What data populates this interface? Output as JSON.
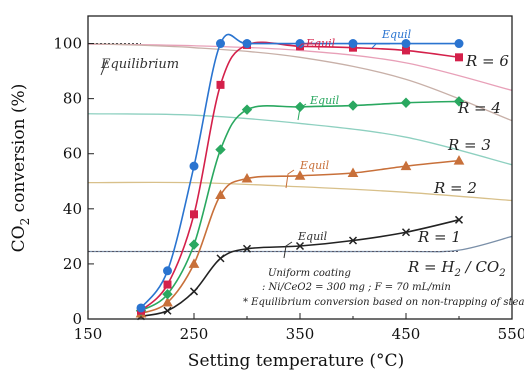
{
  "chart_data": {
    "type": "line",
    "xlabel": "Setting temperature (°C)",
    "ylabel": "CO2 conversion (%)",
    "xlim": [
      150,
      550
    ],
    "ylim": [
      0,
      110
    ],
    "xticks": [
      "150",
      "250",
      "350",
      "450",
      "550"
    ],
    "yticks": [
      "0",
      "20",
      "40",
      "60",
      "80",
      "100"
    ],
    "grid": false,
    "series": [
      {
        "name": "R = 1",
        "color": "#222222",
        "marker": "x",
        "x": [
          200,
          225,
          250,
          275,
          300,
          350,
          400,
          450,
          500
        ],
        "y": [
          1,
          3,
          10,
          22,
          25.5,
          26.5,
          28.5,
          31.5,
          36
        ]
      },
      {
        "name": "R = 2",
        "color": "#c8703a",
        "marker": "triangle",
        "x": [
          200,
          225,
          250,
          275,
          300,
          350,
          400,
          450,
          500
        ],
        "y": [
          2,
          6,
          20,
          45,
          51,
          52,
          53,
          55.5,
          57.5
        ]
      },
      {
        "name": "R = 3",
        "color": "#2aa860",
        "marker": "diamond",
        "x": [
          200,
          225,
          250,
          275,
          300,
          350,
          400,
          450,
          500
        ],
        "y": [
          3,
          9,
          27,
          61.5,
          76,
          77,
          77.5,
          78.5,
          79
        ]
      },
      {
        "name": "R = 4",
        "color": "#d4204a",
        "marker": "square",
        "x": [
          200,
          225,
          250,
          275,
          300,
          350,
          400,
          450,
          500
        ],
        "y": [
          3,
          12.5,
          38,
          85,
          99.5,
          99,
          98.5,
          97.5,
          95
        ]
      },
      {
        "name": "R = 6",
        "color": "#2a74d0",
        "marker": "circle",
        "x": [
          200,
          225,
          250,
          275,
          300,
          350,
          400,
          450,
          500
        ],
        "y": [
          4,
          17.5,
          55.5,
          100,
          100,
          100,
          100,
          100,
          100
        ]
      }
    ],
    "equilibrium_curves": [
      {
        "color": "#e8a0b8",
        "x": [
          150,
          250,
          350,
          450,
          550
        ],
        "y": [
          99.8,
          99.2,
          97.5,
          93,
          83
        ]
      },
      {
        "color": "#c8b0a8",
        "x": [
          150,
          250,
          350,
          450,
          550
        ],
        "y": [
          100,
          98.5,
          95,
          87,
          72
        ]
      },
      {
        "color": "#8ed0c0",
        "x": [
          150,
          250,
          350,
          450,
          550
        ],
        "y": [
          74.5,
          74,
          71,
          66,
          56
        ]
      },
      {
        "color": "#d8c08a",
        "x": [
          150,
          250,
          350,
          450,
          550
        ],
        "y": [
          49.5,
          49.5,
          48,
          46,
          43
        ]
      },
      {
        "color": "#7a8fa8",
        "x": [
          150,
          250,
          350,
          450,
          500,
          550
        ],
        "y": [
          24.5,
          24.5,
          24.5,
          24.5,
          25,
          30
        ]
      }
    ],
    "annotations": {
      "equilibrium": "Equilibrium",
      "equil": "Equil",
      "r_labels": [
        "R = 6",
        "R = 4",
        "R = 3",
        "R = 2",
        "R = 1",
        "R = H2 / CO2"
      ],
      "note_line1": "Uniform coating",
      "note_line2": ": Ni/CeO2 = 300 mg ; F = 70 mL/min",
      "note_line3": "* Equilibrium conversion based on non-trapping of steam"
    }
  }
}
